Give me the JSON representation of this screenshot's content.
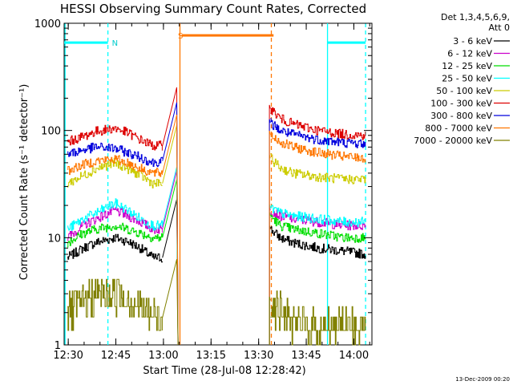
{
  "chart_data": {
    "type": "line",
    "title": "HESSI Observing Summary Count Rates, Corrected",
    "xlabel": "Start Time (28-Jul-08 12:28:42)",
    "ylabel": "Corrected Count Rate (s⁻¹ detector⁻¹)",
    "yscale": "log",
    "ylim": [
      1,
      1000
    ],
    "xlim_minutes": [
      0,
      97
    ],
    "x_ticks": [
      {
        "label": "12:30",
        "minute": 1.3
      },
      {
        "label": "12:45",
        "minute": 16.3
      },
      {
        "label": "13:00",
        "minute": 31.3
      },
      {
        "label": "13:15",
        "minute": 46.3
      },
      {
        "label": "13:30",
        "minute": 61.3
      },
      {
        "label": "13:45",
        "minute": 76.3
      },
      {
        "label": "14:00",
        "minute": 91.3
      }
    ],
    "y_ticks": [
      {
        "label": "1",
        "value": 1
      },
      {
        "label": "10",
        "value": 10
      },
      {
        "label": "100",
        "value": 100
      },
      {
        "label": "1000",
        "value": 1000
      }
    ],
    "legend_header": [
      "Det 1,3,4,5,6,9,",
      "Att 0"
    ],
    "legend_position": "top-right outside",
    "gap": [
      35.5,
      64.7
    ],
    "series": [
      {
        "name": "3 - 6 keV",
        "color": "#000000",
        "before": [
          [
            1,
            6.5
          ],
          [
            6,
            8
          ],
          [
            10,
            9
          ],
          [
            16,
            10
          ],
          [
            20,
            9.2
          ],
          [
            24,
            8
          ],
          [
            28,
            6.5
          ],
          [
            31,
            6.5
          ]
        ],
        "after": [
          [
            65,
            12
          ],
          [
            68,
            10
          ],
          [
            72,
            9
          ],
          [
            80,
            8
          ],
          [
            88,
            7.5
          ],
          [
            95,
            7
          ]
        ]
      },
      {
        "name": "6 - 12 keV",
        "color": "#cc00cc",
        "before": [
          [
            1,
            10
          ],
          [
            6,
            13
          ],
          [
            10,
            15
          ],
          [
            16,
            18
          ],
          [
            20,
            16
          ],
          [
            24,
            14
          ],
          [
            28,
            12
          ],
          [
            31,
            12
          ]
        ],
        "after": [
          [
            65,
            18
          ],
          [
            68,
            16
          ],
          [
            72,
            15
          ],
          [
            80,
            14
          ],
          [
            88,
            13
          ],
          [
            95,
            13
          ]
        ]
      },
      {
        "name": "12 - 25 keV",
        "color": "#00dd00",
        "before": [
          [
            1,
            9
          ],
          [
            6,
            11
          ],
          [
            10,
            12
          ],
          [
            16,
            13
          ],
          [
            20,
            12
          ],
          [
            24,
            11
          ],
          [
            28,
            10
          ],
          [
            31,
            10
          ]
        ],
        "after": [
          [
            65,
            16
          ],
          [
            68,
            13
          ],
          [
            72,
            12
          ],
          [
            80,
            11
          ],
          [
            88,
            10
          ],
          [
            95,
            10
          ]
        ]
      },
      {
        "name": "25 - 50 keV",
        "color": "#00ffff",
        "before": [
          [
            1,
            12
          ],
          [
            6,
            15
          ],
          [
            10,
            17
          ],
          [
            16,
            21
          ],
          [
            20,
            18
          ],
          [
            24,
            15
          ],
          [
            28,
            13
          ],
          [
            31,
            13
          ]
        ],
        "after": [
          [
            65,
            19
          ],
          [
            68,
            17
          ],
          [
            72,
            16
          ],
          [
            80,
            15
          ],
          [
            88,
            14
          ],
          [
            95,
            14
          ]
        ]
      },
      {
        "name": "50 - 100 keV",
        "color": "#cccc00",
        "before": [
          [
            1,
            32
          ],
          [
            6,
            38
          ],
          [
            10,
            44
          ],
          [
            16,
            50
          ],
          [
            20,
            44
          ],
          [
            24,
            38
          ],
          [
            28,
            32
          ],
          [
            31,
            32
          ]
        ],
        "after": [
          [
            65,
            55
          ],
          [
            68,
            45
          ],
          [
            72,
            40
          ],
          [
            80,
            37
          ],
          [
            88,
            35
          ],
          [
            95,
            35
          ]
        ]
      },
      {
        "name": "100 - 300 keV",
        "color": "#dd0000",
        "before": [
          [
            1,
            78
          ],
          [
            6,
            88
          ],
          [
            10,
            98
          ],
          [
            16,
            105
          ],
          [
            20,
            95
          ],
          [
            24,
            82
          ],
          [
            28,
            72
          ],
          [
            31,
            72
          ]
        ],
        "after": [
          [
            65,
            160
          ],
          [
            68,
            130
          ],
          [
            72,
            115
          ],
          [
            80,
            100
          ],
          [
            88,
            92
          ],
          [
            95,
            90
          ]
        ]
      },
      {
        "name": "300 - 800 keV",
        "color": "#0000dd",
        "before": [
          [
            1,
            60
          ],
          [
            6,
            66
          ],
          [
            10,
            70
          ],
          [
            16,
            68
          ],
          [
            20,
            62
          ],
          [
            24,
            56
          ],
          [
            28,
            50
          ],
          [
            31,
            52
          ]
        ],
        "after": [
          [
            65,
            118
          ],
          [
            68,
            100
          ],
          [
            72,
            92
          ],
          [
            80,
            82
          ],
          [
            88,
            77
          ],
          [
            95,
            75
          ]
        ]
      },
      {
        "name": "800 - 7000 keV",
        "color": "#ff7700",
        "before": [
          [
            1,
            42
          ],
          [
            6,
            48
          ],
          [
            10,
            52
          ],
          [
            16,
            54
          ],
          [
            20,
            50
          ],
          [
            24,
            44
          ],
          [
            28,
            40
          ],
          [
            31,
            40
          ]
        ],
        "after": [
          [
            65,
            92
          ],
          [
            68,
            78
          ],
          [
            72,
            70
          ],
          [
            80,
            62
          ],
          [
            88,
            57
          ],
          [
            95,
            55
          ]
        ]
      },
      {
        "name": "7000 - 20000 keV",
        "color": "#808000",
        "before": [
          [
            1,
            2
          ],
          [
            6,
            2.5
          ],
          [
            10,
            3
          ],
          [
            16,
            3
          ],
          [
            20,
            2.8
          ],
          [
            24,
            2.2
          ],
          [
            28,
            1.8
          ],
          [
            31,
            1.8
          ]
        ],
        "after": [
          [
            65,
            2.6
          ],
          [
            68,
            2
          ],
          [
            72,
            1.6
          ],
          [
            80,
            1.4
          ],
          [
            88,
            1.6
          ],
          [
            95,
            1.4
          ]
        ]
      }
    ],
    "annotations": [
      {
        "label": "N",
        "color": "#00cccc",
        "x_minute": 13.8,
        "value": 660
      },
      {
        "label": "S",
        "color": "#ff7700",
        "x_minute": 34.6,
        "value": 770
      }
    ],
    "flag_segments": [
      {
        "color": "#00ffff",
        "x": [
          0,
          13.8
        ],
        "value": 660
      },
      {
        "color": "#00ffff",
        "x": [
          83,
          95
        ],
        "value": 660
      },
      {
        "color": "#ff7700",
        "x": [
          37,
          66
        ],
        "value": 770
      }
    ],
    "markers": [
      {
        "color": "#00ffff",
        "style": "solid",
        "x_minute": 0.3
      },
      {
        "color": "#00ffff",
        "style": "dashed",
        "x_minute": 13.8
      },
      {
        "color": "#00ffff",
        "style": "solid",
        "x_minute": 83
      },
      {
        "color": "#00ffff",
        "style": "dashed",
        "x_minute": 95
      },
      {
        "color": "#ff7700",
        "style": "solid",
        "x_minute": 36.5
      },
      {
        "color": "#ff7700",
        "style": "dashed",
        "x_minute": 65.3
      }
    ],
    "footer_timestamp": "13-Dec-2009 00:20"
  }
}
